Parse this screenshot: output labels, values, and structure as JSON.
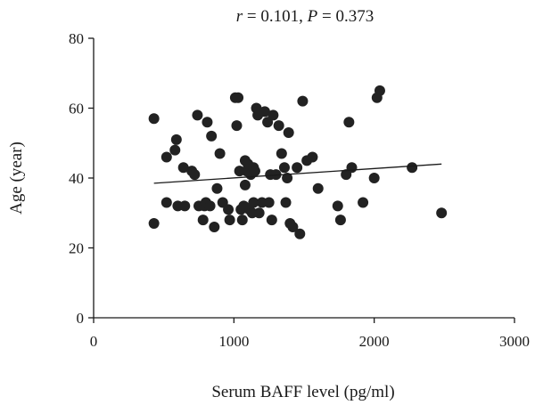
{
  "chart_data": {
    "type": "scatter",
    "title_parts": {
      "r_symbol": "r",
      "r_value": " = 0.101, ",
      "p_symbol": "P",
      "p_value": " = 0.373"
    },
    "xlabel": "Serum BAFF level (pg/ml)",
    "ylabel": "Age (year)",
    "xlim": [
      0,
      3000
    ],
    "ylim": [
      0,
      80
    ],
    "xticks": [
      0,
      1000,
      2000,
      3000
    ],
    "yticks": [
      0,
      20,
      40,
      60,
      80
    ],
    "grid": false,
    "legend": "none",
    "marker_color": "#222222",
    "trendline": {
      "x": [
        430,
        2480
      ],
      "y": [
        38.5,
        44.0
      ]
    },
    "points": [
      {
        "x": 430,
        "y": 57
      },
      {
        "x": 430,
        "y": 27
      },
      {
        "x": 520,
        "y": 46
      },
      {
        "x": 520,
        "y": 33
      },
      {
        "x": 580,
        "y": 48
      },
      {
        "x": 590,
        "y": 51
      },
      {
        "x": 600,
        "y": 32
      },
      {
        "x": 640,
        "y": 43
      },
      {
        "x": 650,
        "y": 32
      },
      {
        "x": 700,
        "y": 42
      },
      {
        "x": 720,
        "y": 41
      },
      {
        "x": 740,
        "y": 58
      },
      {
        "x": 750,
        "y": 32
      },
      {
        "x": 780,
        "y": 28
      },
      {
        "x": 790,
        "y": 32
      },
      {
        "x": 800,
        "y": 33
      },
      {
        "x": 810,
        "y": 56
      },
      {
        "x": 830,
        "y": 32
      },
      {
        "x": 840,
        "y": 52
      },
      {
        "x": 860,
        "y": 26
      },
      {
        "x": 880,
        "y": 37
      },
      {
        "x": 900,
        "y": 47
      },
      {
        "x": 920,
        "y": 33
      },
      {
        "x": 960,
        "y": 31
      },
      {
        "x": 970,
        "y": 28
      },
      {
        "x": 1010,
        "y": 63
      },
      {
        "x": 1020,
        "y": 55
      },
      {
        "x": 1030,
        "y": 63
      },
      {
        "x": 1040,
        "y": 42
      },
      {
        "x": 1050,
        "y": 31
      },
      {
        "x": 1060,
        "y": 28
      },
      {
        "x": 1070,
        "y": 32
      },
      {
        "x": 1080,
        "y": 45
      },
      {
        "x": 1080,
        "y": 38
      },
      {
        "x": 1090,
        "y": 42
      },
      {
        "x": 1100,
        "y": 44
      },
      {
        "x": 1110,
        "y": 31
      },
      {
        "x": 1120,
        "y": 41
      },
      {
        "x": 1130,
        "y": 30
      },
      {
        "x": 1140,
        "y": 33
      },
      {
        "x": 1140,
        "y": 43
      },
      {
        "x": 1150,
        "y": 42
      },
      {
        "x": 1160,
        "y": 60
      },
      {
        "x": 1170,
        "y": 58
      },
      {
        "x": 1180,
        "y": 30
      },
      {
        "x": 1200,
        "y": 33
      },
      {
        "x": 1220,
        "y": 59
      },
      {
        "x": 1240,
        "y": 56
      },
      {
        "x": 1250,
        "y": 33
      },
      {
        "x": 1260,
        "y": 41
      },
      {
        "x": 1270,
        "y": 28
      },
      {
        "x": 1280,
        "y": 58
      },
      {
        "x": 1300,
        "y": 41
      },
      {
        "x": 1320,
        "y": 55
      },
      {
        "x": 1340,
        "y": 47
      },
      {
        "x": 1360,
        "y": 43
      },
      {
        "x": 1370,
        "y": 33
      },
      {
        "x": 1380,
        "y": 40
      },
      {
        "x": 1390,
        "y": 53
      },
      {
        "x": 1400,
        "y": 27
      },
      {
        "x": 1420,
        "y": 26
      },
      {
        "x": 1450,
        "y": 43
      },
      {
        "x": 1470,
        "y": 24
      },
      {
        "x": 1490,
        "y": 62
      },
      {
        "x": 1520,
        "y": 45
      },
      {
        "x": 1560,
        "y": 46
      },
      {
        "x": 1600,
        "y": 37
      },
      {
        "x": 1740,
        "y": 32
      },
      {
        "x": 1760,
        "y": 28
      },
      {
        "x": 1800,
        "y": 41
      },
      {
        "x": 1820,
        "y": 56
      },
      {
        "x": 1840,
        "y": 43
      },
      {
        "x": 1920,
        "y": 33
      },
      {
        "x": 2000,
        "y": 40
      },
      {
        "x": 2020,
        "y": 63
      },
      {
        "x": 2040,
        "y": 65
      },
      {
        "x": 2270,
        "y": 43
      },
      {
        "x": 2480,
        "y": 30
      }
    ]
  }
}
